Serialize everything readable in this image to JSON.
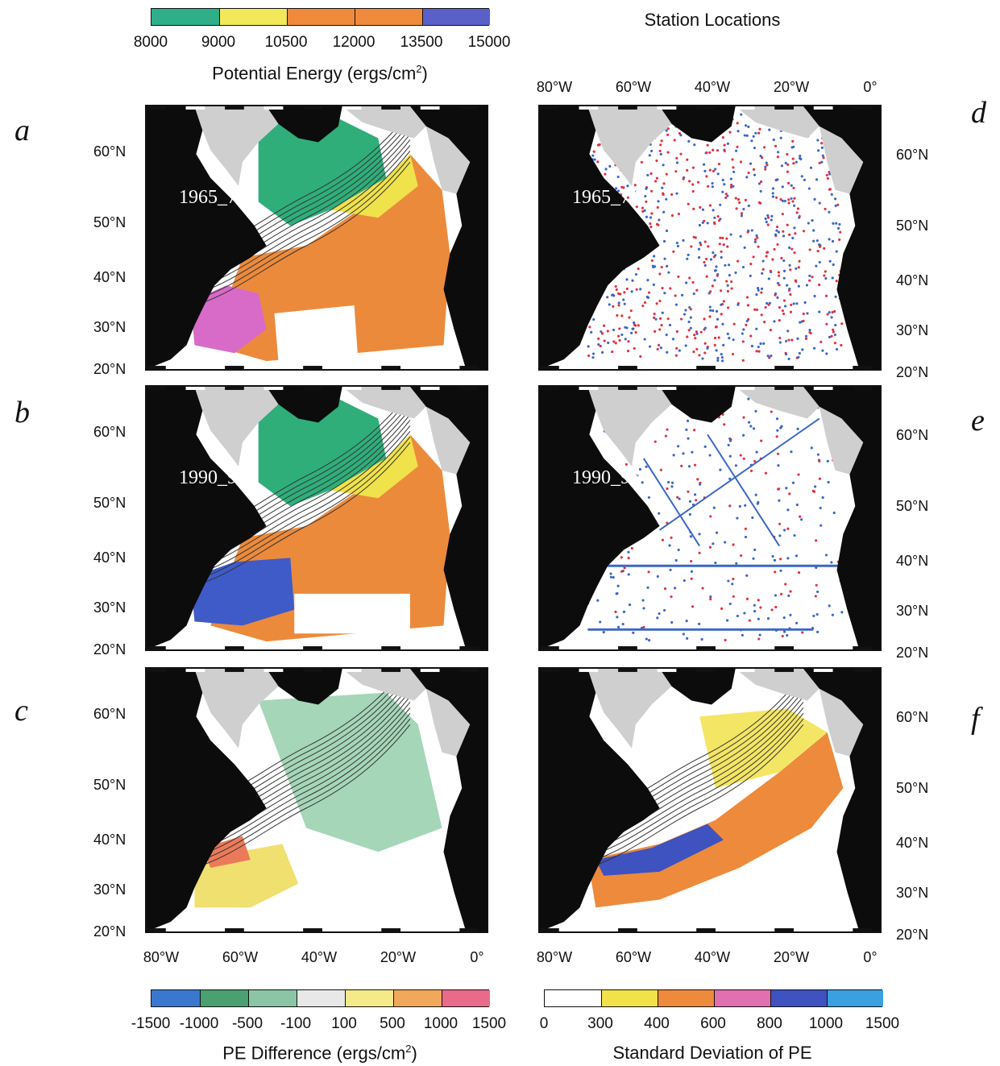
{
  "colorbars": {
    "pe": {
      "title": "Potential Energy (ergs/cm",
      "title_sup": "2",
      "title_close": ")",
      "ticks": [
        "8000",
        "9000",
        "10500",
        "12000",
        "13500",
        "15000"
      ],
      "colors": [
        "#2fae8a",
        "#f2e85a",
        "#ef8a3c",
        "#ef8a3c",
        "#5a60c8"
      ]
    },
    "diff": {
      "title": "PE Difference (ergs/cm",
      "title_sup": "2",
      "title_close": ")",
      "ticks": [
        "-1500",
        "-1000",
        "-500",
        "-100",
        "100",
        "500",
        "1000",
        "1500"
      ],
      "colors": [
        "#3a78d0",
        "#4aa070",
        "#8ac6a6",
        "#e8e8e8",
        "#f5ea8a",
        "#f2a85a",
        "#ea6a8a"
      ]
    },
    "sd": {
      "title": "Standard Deviation of PE",
      "ticks": [
        "0",
        "300",
        "400",
        "600",
        "800",
        "1000",
        "1500"
      ],
      "colors": [
        "#ffffff",
        "#f2e24a",
        "#ee8a3c",
        "#e070b0",
        "#3e52c0",
        "#3aa0e0"
      ]
    }
  },
  "station_title": "Station Locations",
  "panels": {
    "a": {
      "letter": "a",
      "period": "1965_74"
    },
    "b": {
      "letter": "b",
      "period": "1990_97"
    },
    "c": {
      "letter": "c",
      "period": ""
    },
    "d": {
      "letter": "d",
      "period": "1965_74"
    },
    "e": {
      "letter": "e",
      "period": "1990_97"
    },
    "f": {
      "letter": "f",
      "period": ""
    }
  },
  "axes": {
    "lat_labels": [
      "60°N",
      "50°N",
      "40°N",
      "30°N",
      "20°N"
    ],
    "lon_labels": [
      "80°W",
      "60°W",
      "40°W",
      "20°W",
      "0°"
    ]
  },
  "colors": {
    "land": "#0c0c0c",
    "ice": "#cfcfcf",
    "station_red": "#e23040",
    "station_blue": "#3a66c8"
  }
}
